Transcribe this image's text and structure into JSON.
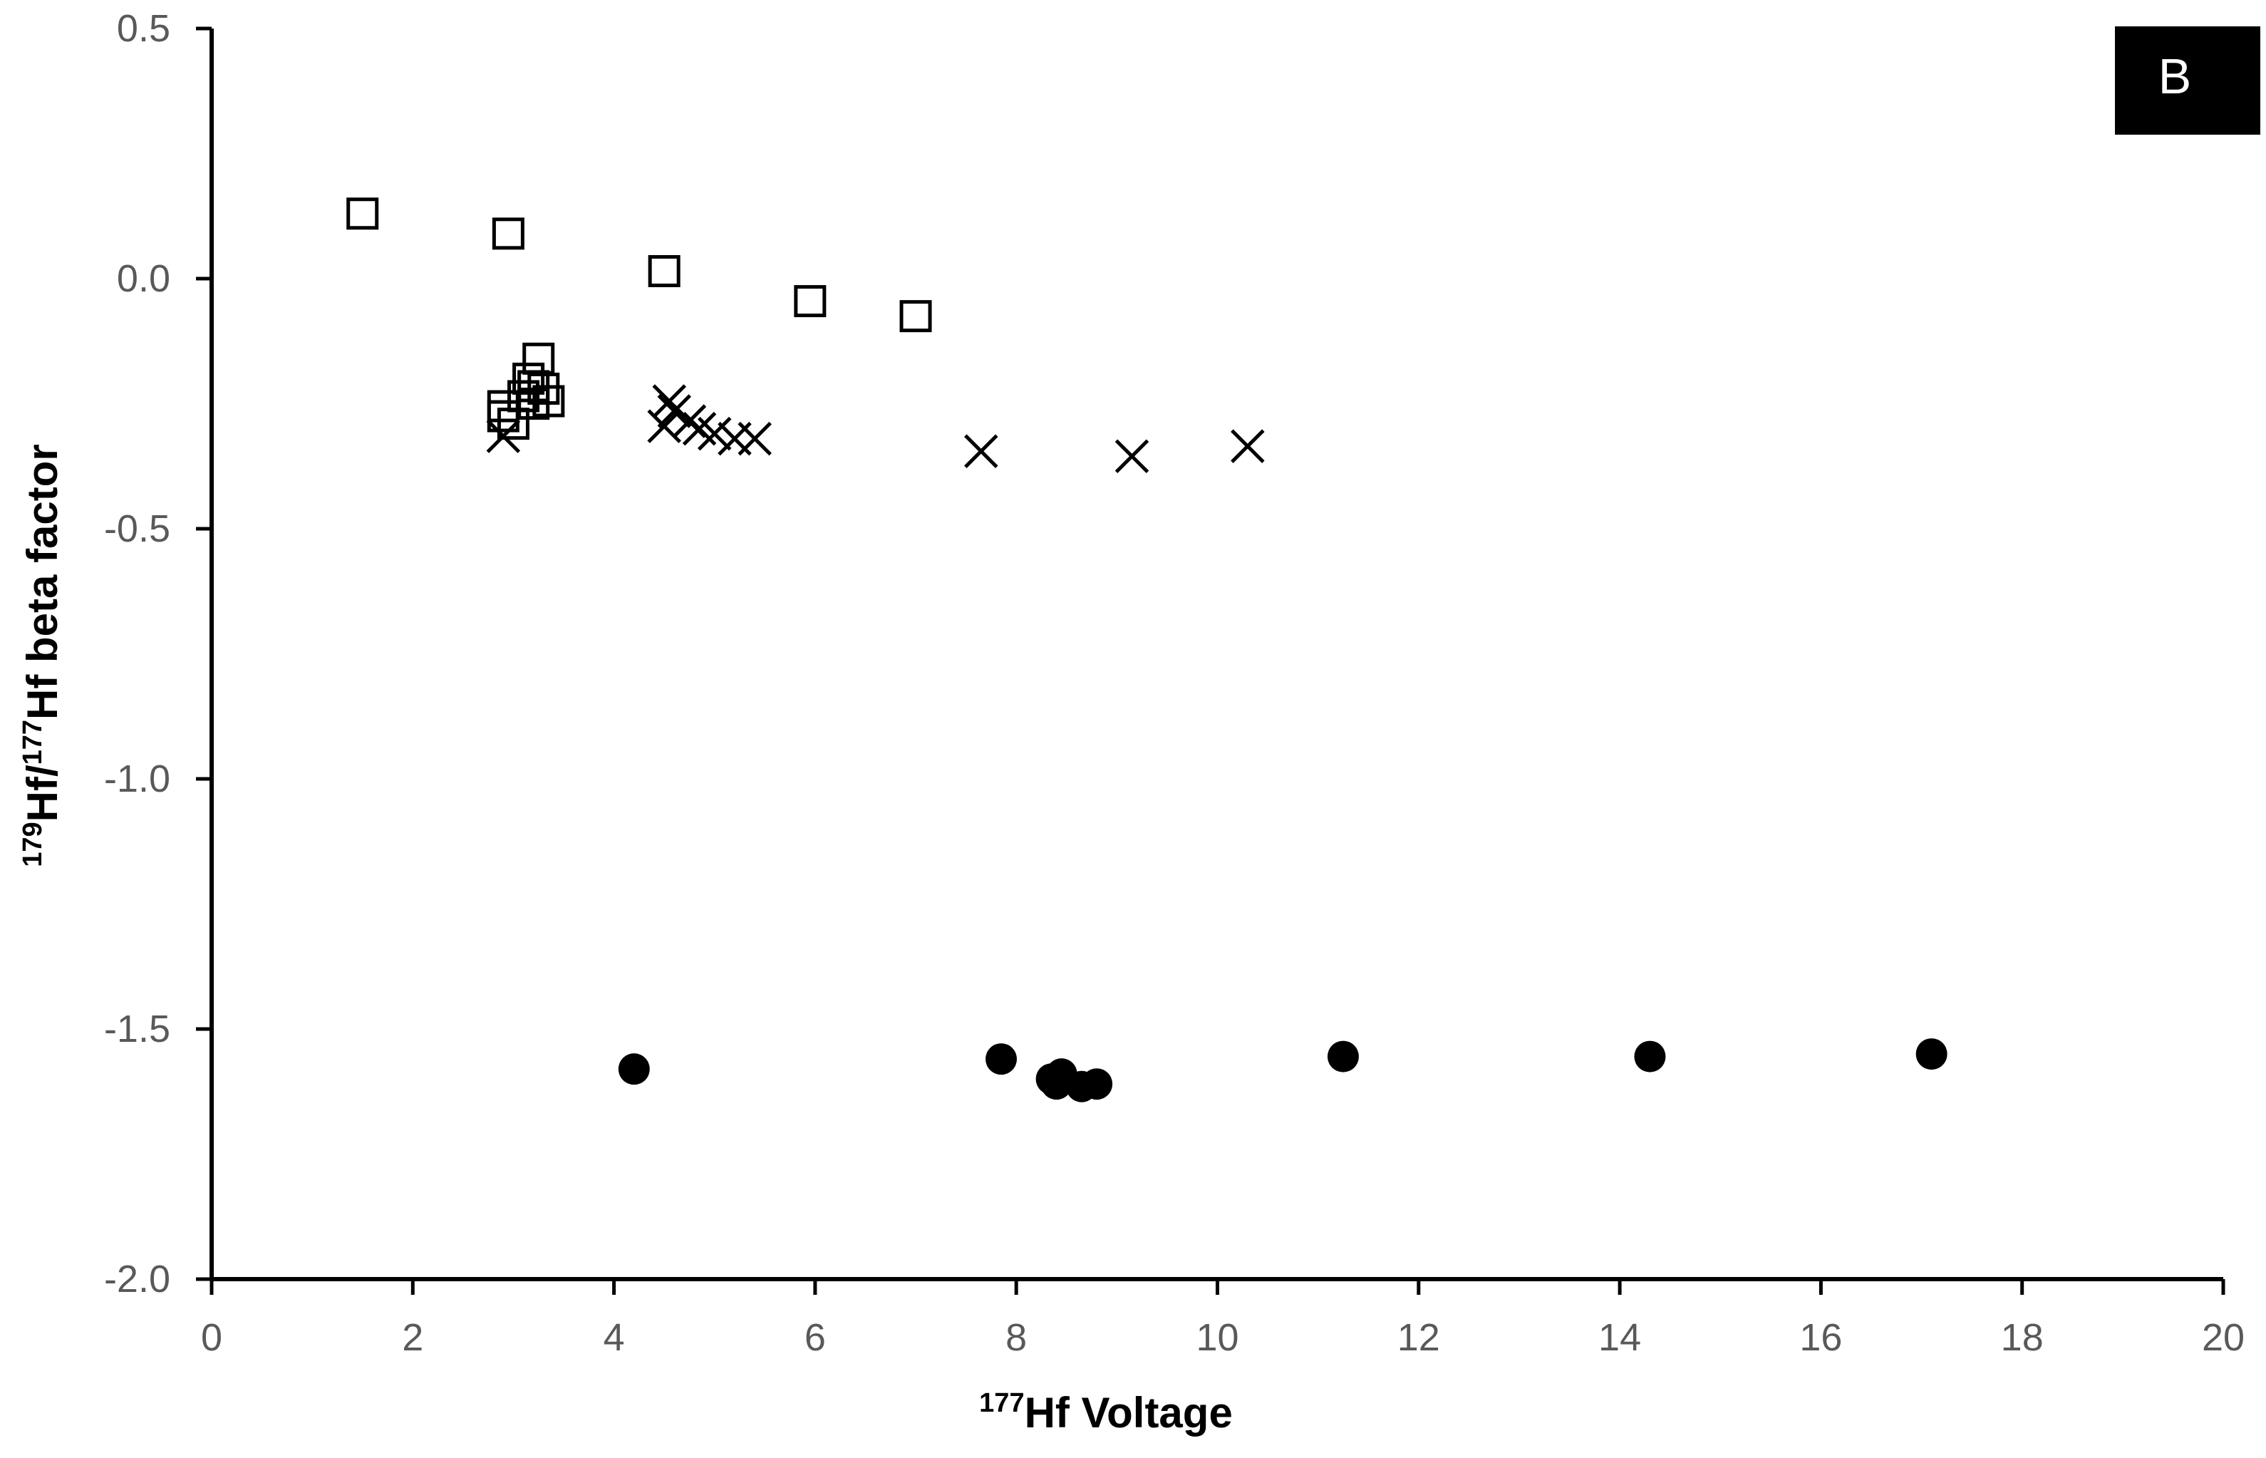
{
  "chart_data": {
    "type": "scatter",
    "title": "",
    "panel_label": "B",
    "xlabel": {
      "sup": "177",
      "text": "Hf Voltage"
    },
    "ylabel": {
      "sup1": "179",
      "mid": "Hf/",
      "sup2": "177",
      "text": "Hf beta factor"
    },
    "xlim": [
      0,
      20
    ],
    "ylim": [
      -2.0,
      0.5
    ],
    "x_ticks": [
      "0",
      "2",
      "4",
      "6",
      "8",
      "10",
      "12",
      "14",
      "16",
      "18",
      "20"
    ],
    "y_ticks": [
      "0.5",
      "0.0",
      "-0.5",
      "-1.0",
      "-1.5",
      "-2.0"
    ],
    "grid": false,
    "legend": "none",
    "colors": {
      "axis": "#000000",
      "tick_text": "#595959",
      "marker": "#000000",
      "panel_bg": "#000000",
      "panel_text": "#ffffff"
    },
    "series": [
      {
        "marker": "open-square",
        "points": [
          [
            1.5,
            0.13
          ],
          [
            2.95,
            0.09
          ],
          [
            4.5,
            0.015
          ],
          [
            5.95,
            -0.045
          ],
          [
            7.0,
            -0.075
          ],
          [
            3.25,
            -0.16
          ],
          [
            3.15,
            -0.2
          ],
          [
            3.2,
            -0.215
          ],
          [
            3.3,
            -0.22
          ],
          [
            3.1,
            -0.235
          ],
          [
            3.35,
            -0.245
          ],
          [
            3.2,
            -0.25
          ],
          [
            2.9,
            -0.255
          ],
          [
            2.9,
            -0.275
          ],
          [
            3.0,
            -0.29
          ]
        ]
      },
      {
        "marker": "x",
        "points": [
          [
            2.9,
            -0.315
          ],
          [
            4.55,
            -0.245
          ],
          [
            4.6,
            -0.265
          ],
          [
            4.5,
            -0.295
          ],
          [
            4.75,
            -0.285
          ],
          [
            4.85,
            -0.3
          ],
          [
            5.0,
            -0.31
          ],
          [
            5.2,
            -0.32
          ],
          [
            5.4,
            -0.32
          ],
          [
            7.65,
            -0.345
          ],
          [
            9.15,
            -0.355
          ],
          [
            10.3,
            -0.335
          ]
        ]
      },
      {
        "marker": "filled-circle",
        "points": [
          [
            4.2,
            -1.58
          ],
          [
            7.85,
            -1.56
          ],
          [
            8.35,
            -1.6
          ],
          [
            8.45,
            -1.59
          ],
          [
            8.4,
            -1.61
          ],
          [
            8.65,
            -1.615
          ],
          [
            8.8,
            -1.61
          ],
          [
            11.25,
            -1.555
          ],
          [
            14.3,
            -1.555
          ],
          [
            17.1,
            -1.55
          ]
        ]
      }
    ]
  }
}
